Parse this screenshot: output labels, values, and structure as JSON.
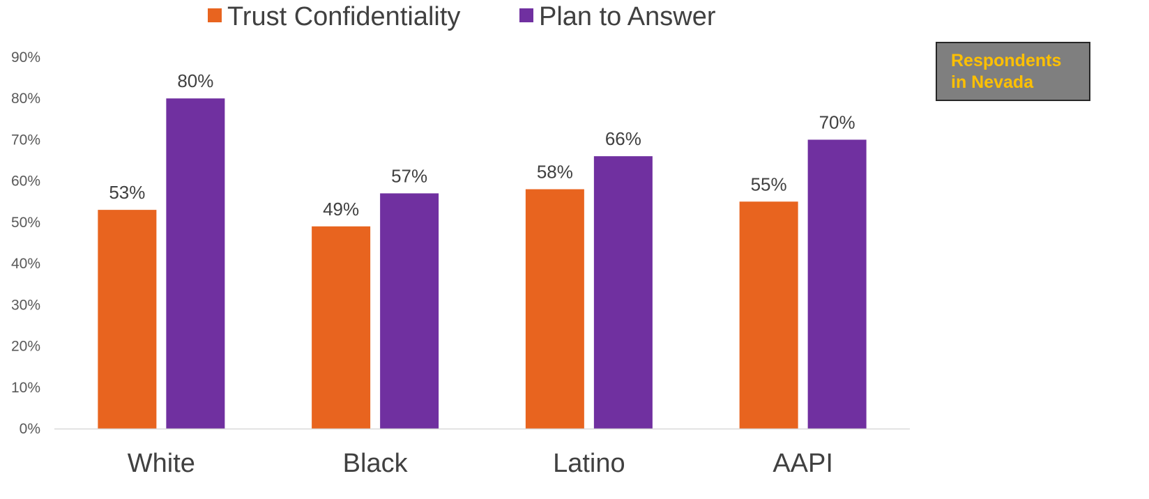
{
  "chart_data": {
    "type": "bar",
    "categories": [
      "White",
      "Black",
      "Latino",
      "AAPI"
    ],
    "series": [
      {
        "name": "Trust Confidentiality",
        "color": "#e8641f",
        "values": [
          53,
          49,
          58,
          55
        ],
        "labels": [
          "53%",
          "49%",
          "58%",
          "55%"
        ]
      },
      {
        "name": "Plan to Answer",
        "color": "#7030a0",
        "values": [
          80,
          57,
          66,
          70
        ],
        "labels": [
          "80%",
          "57%",
          "66%",
          "70%"
        ]
      }
    ],
    "ylim": [
      0,
      90
    ],
    "yticks": [
      0,
      10,
      20,
      30,
      40,
      50,
      60,
      70,
      80,
      90
    ],
    "ytick_labels": [
      "0%",
      "10%",
      "20%",
      "30%",
      "40%",
      "50%",
      "60%",
      "70%",
      "80%",
      "90%"
    ],
    "legend_position": "top-center",
    "grid": false
  },
  "annotation": {
    "text": "Respondents in Nevada"
  }
}
